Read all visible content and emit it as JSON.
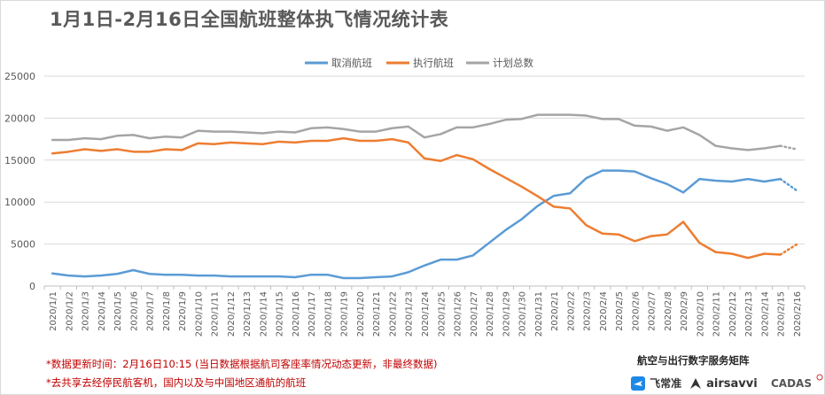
{
  "chart_data": {
    "type": "line",
    "title": "1月1日-2月16日全国航班整体执飞情况统计表",
    "xlabel": "",
    "ylabel": "",
    "ylim": [
      0,
      25000
    ],
    "yticks": [
      0,
      5000,
      10000,
      15000,
      20000,
      25000
    ],
    "grid": true,
    "legend": "top-center",
    "categories": [
      "2020/1/1",
      "2020/1/2",
      "2020/1/3",
      "2020/1/4",
      "2020/1/5",
      "2020/1/6",
      "2020/1/7",
      "2020/1/8",
      "2020/1/9",
      "2020/1/10",
      "2020/1/11",
      "2020/1/12",
      "2020/1/13",
      "2020/1/14",
      "2020/1/15",
      "2020/1/16",
      "2020/1/17",
      "2020/1/18",
      "2020/1/19",
      "2020/1/20",
      "2020/1/21",
      "2020/1/22",
      "2020/1/23",
      "2020/1/24",
      "2020/1/25",
      "2020/1/26",
      "2020/1/27",
      "2020/1/28",
      "2020/1/29",
      "2020/1/30",
      "2020/1/31",
      "2020/2/1",
      "2020/2/2",
      "2020/2/3",
      "2020/2/4",
      "2020/2/5",
      "2020/2/6",
      "2020/2/7",
      "2020/2/8",
      "2020/2/9",
      "2020/2/10",
      "2020/2/11",
      "2020/2/12",
      "2020/2/13",
      "2020/2/14",
      "2020/2/15",
      "2020/2/16"
    ],
    "series": [
      {
        "name": "取消航班",
        "color": "#5b9bd5",
        "values": [
          1500,
          1250,
          1150,
          1250,
          1450,
          1900,
          1450,
          1350,
          1350,
          1250,
          1250,
          1150,
          1150,
          1150,
          1150,
          1050,
          1350,
          1350,
          950,
          950,
          1050,
          1150,
          1650,
          2450,
          3150,
          3150,
          3650,
          5150,
          6650,
          7950,
          9550,
          10750,
          11050,
          12850,
          13750,
          13750,
          13650,
          12850,
          12150,
          11150,
          12750,
          12550,
          12450,
          12750,
          12450,
          12750,
          11400
        ],
        "projected_from_index": 45
      },
      {
        "name": "执行航班",
        "color": "#ed7d31",
        "values": [
          15800,
          16000,
          16300,
          16100,
          16300,
          16000,
          16000,
          16300,
          16200,
          17000,
          16900,
          17100,
          17000,
          16900,
          17200,
          17100,
          17300,
          17300,
          17600,
          17300,
          17300,
          17500,
          17100,
          15200,
          14900,
          15600,
          15100,
          13950,
          12900,
          11850,
          10700,
          9450,
          9250,
          7250,
          6250,
          6150,
          5350,
          5950,
          6150,
          7650,
          5150,
          4050,
          3850,
          3350,
          3850,
          3750,
          4950
        ],
        "projected_from_index": 45
      },
      {
        "name": "计划总数",
        "color": "#a5a5a5",
        "values": [
          17400,
          17400,
          17600,
          17500,
          17900,
          18000,
          17600,
          17800,
          17700,
          18500,
          18400,
          18400,
          18300,
          18200,
          18400,
          18300,
          18800,
          18900,
          18700,
          18400,
          18400,
          18800,
          19000,
          17700,
          18100,
          18900,
          18900,
          19300,
          19800,
          19900,
          20400,
          20400,
          20400,
          20300,
          19900,
          19900,
          19100,
          19000,
          18500,
          18900,
          18000,
          16700,
          16400,
          16200,
          16400,
          16700,
          16300
        ],
        "projected_from_index": 45
      }
    ]
  },
  "footnotes": [
    "*数据更新时间：2月16日10:15 (当日数据根据航司客座率情况动态更新，非最终数据)",
    "*去共享去经停民航客机，国内以及与中国地区通航的航班"
  ],
  "brand": {
    "title": "航空与出行数字服务矩阵",
    "logos": [
      {
        "name": "飞常准",
        "icon": "plane-logo-icon",
        "color": "#1e88e5"
      },
      {
        "name": "airsavvi",
        "icon": "airsavvi-logo-icon",
        "color": "#333333"
      },
      {
        "name": "CADAS",
        "icon": "cadas-logo-icon",
        "color": "#d32f2f"
      }
    ]
  }
}
